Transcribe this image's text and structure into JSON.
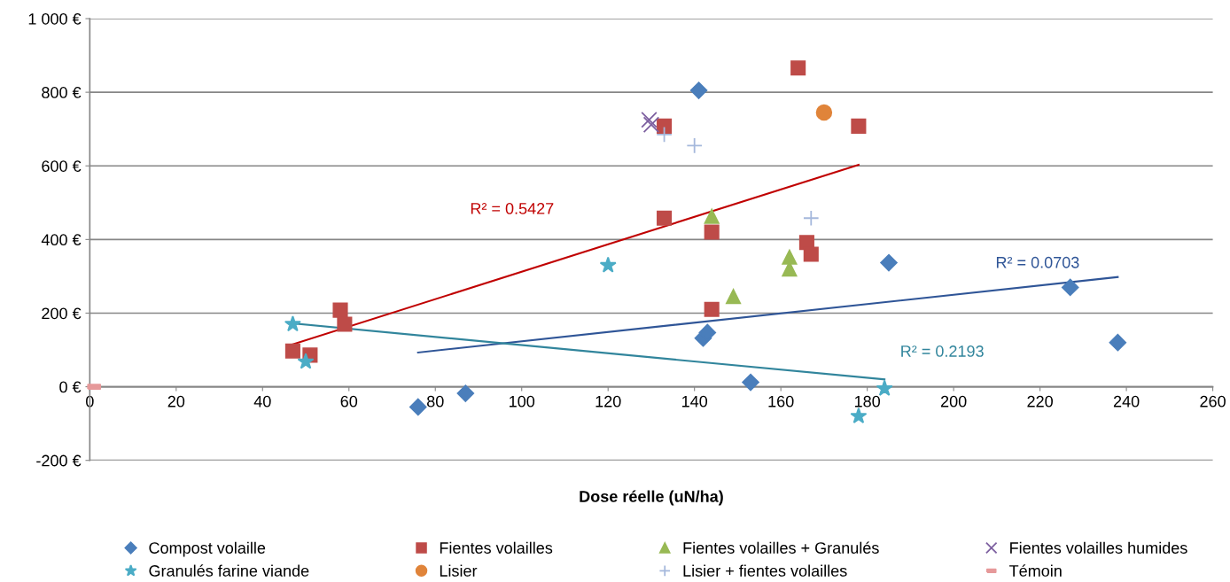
{
  "chart_data": {
    "type": "scatter",
    "xlabel": "Dose réelle (uN/ha)",
    "xlim": [
      0,
      260
    ],
    "xticks": [
      0,
      20,
      40,
      60,
      80,
      100,
      120,
      140,
      160,
      180,
      200,
      220,
      240,
      260
    ],
    "ylim": [
      -200,
      1000
    ],
    "yticks": [
      {
        "value": -200,
        "label": "-200 €"
      },
      {
        "value": 0,
        "label": "0 €"
      },
      {
        "value": 200,
        "label": "200 €"
      },
      {
        "value": 400,
        "label": "400 €"
      },
      {
        "value": 600,
        "label": "600 €"
      },
      {
        "value": 800,
        "label": "800 €"
      },
      {
        "value": 1000,
        "label": "1 000 €"
      }
    ],
    "grid": "y",
    "legend": "bottom",
    "series": [
      {
        "name": "Compost volaille",
        "color": "#4a7ebb",
        "marker": "diamond",
        "x": [
          76,
          87,
          141,
          142,
          143,
          153,
          185,
          227,
          238
        ],
        "values": [
          -55,
          -18,
          805,
          132,
          147,
          12,
          337,
          270,
          120
        ]
      },
      {
        "name": "Fientes volailles",
        "color": "#be4b48",
        "marker": "square",
        "x": [
          47,
          51,
          58,
          59,
          133,
          133,
          144,
          144,
          164,
          166,
          167,
          178
        ],
        "values": [
          97,
          86,
          208,
          170,
          708,
          458,
          420,
          210,
          866,
          392,
          360,
          708
        ]
      },
      {
        "name": "Fientes volailles + Granulés",
        "color": "#98b954",
        "marker": "triangle",
        "x": [
          144,
          149,
          162,
          162
        ],
        "values": [
          463,
          245,
          352,
          320
        ]
      },
      {
        "name": "Fientes volailles humides",
        "color": "#7d60a0",
        "marker": "cross",
        "x": [
          129.5,
          130
        ],
        "values": [
          725,
          712
        ]
      },
      {
        "name": "Granulés farine viande",
        "color": "#4bacc6",
        "marker": "star",
        "x": [
          47,
          50,
          120,
          178,
          184
        ],
        "values": [
          170,
          68,
          330,
          -80,
          -5
        ]
      },
      {
        "name": "Lisier",
        "color": "#e0843a",
        "marker": "circle",
        "x": [
          170
        ],
        "values": [
          745
        ]
      },
      {
        "name": "Lisier + fientes volailles",
        "color": "#a5b8dc",
        "marker": "plus",
        "x": [
          133,
          140,
          167
        ],
        "values": [
          685,
          655,
          458
        ]
      },
      {
        "name": "Témoin",
        "color": "#e6999a",
        "x": [
          1
        ],
        "values": [
          0
        ]
      },
      {
        "type": "line",
        "color": "#c00000",
        "x": [
          47,
          178
        ],
        "values": [
          115,
          603
        ]
      },
      {
        "type": "line",
        "color": "#2f5597",
        "x": [
          76,
          238
        ],
        "values": [
          93,
          298
        ]
      },
      {
        "type": "line",
        "color": "#31859c",
        "x": [
          47,
          184
        ],
        "values": [
          172,
          20
        ]
      }
    ],
    "annotations": [
      "R² = 0.5427",
      "R² = 0.0703",
      "R² = 0.2193"
    ]
  }
}
